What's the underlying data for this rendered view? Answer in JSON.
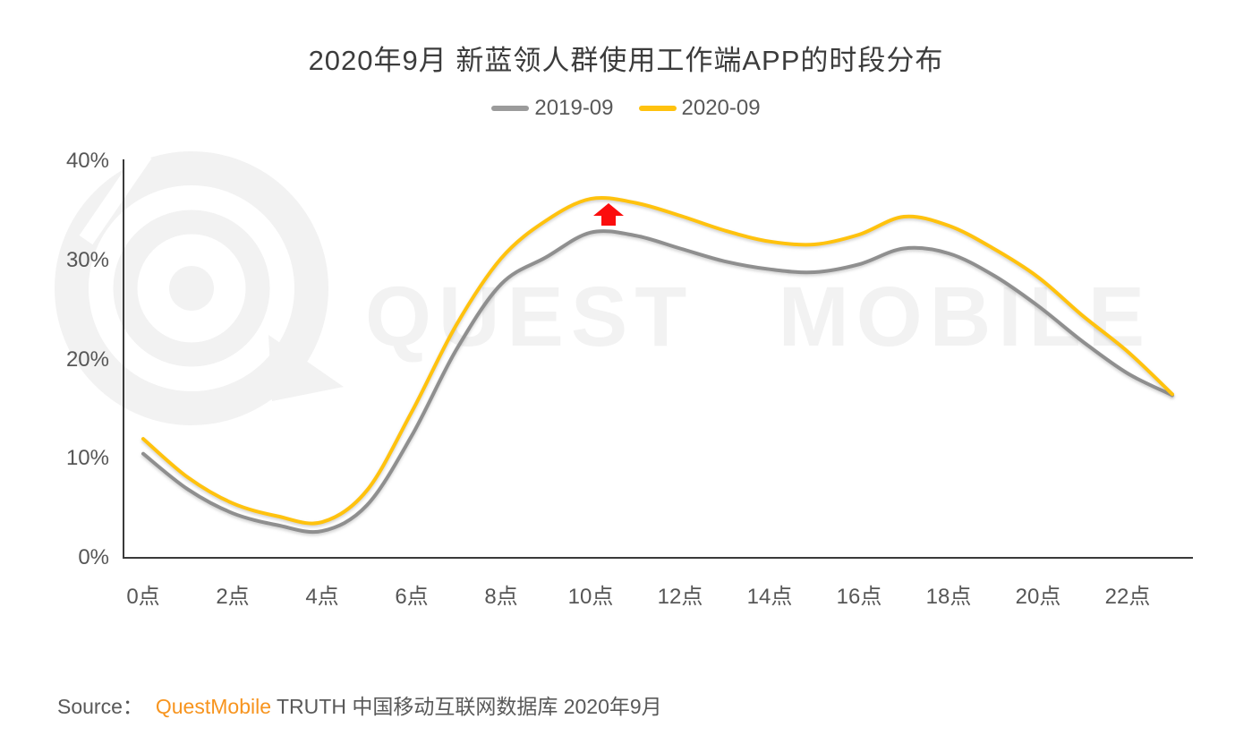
{
  "title": "2020年9月 新蓝领人群使用工作端APP的时段分布",
  "legend": [
    {
      "label": "2019-09",
      "color": "#9b9b9b"
    },
    {
      "label": "2020-09",
      "color": "#ffc20e"
    }
  ],
  "watermark": {
    "text": "QUEST MOBILE"
  },
  "source": {
    "prefix": "Source：",
    "brand": "QuestMobile",
    "brand_color": "#f7941e",
    "suffix": "TRUTH 中国移动互联网数据库 2020年9月"
  },
  "chart_data": {
    "type": "line",
    "x": [
      0,
      1,
      2,
      3,
      4,
      5,
      6,
      7,
      8,
      9,
      10,
      11,
      12,
      13,
      14,
      15,
      16,
      17,
      18,
      19,
      20,
      21,
      22,
      23
    ],
    "x_tick_labels": [
      "0点",
      "2点",
      "4点",
      "6点",
      "8点",
      "10点",
      "12点",
      "14点",
      "16点",
      "18点",
      "20点",
      "22点"
    ],
    "x_tick_hours": [
      0,
      2,
      4,
      6,
      8,
      10,
      12,
      14,
      16,
      18,
      20,
      22
    ],
    "y_tick_labels": [
      "0%",
      "10%",
      "20%",
      "30%",
      "40%"
    ],
    "y_ticks": [
      0,
      10,
      20,
      30,
      40
    ],
    "ylim": [
      0,
      40
    ],
    "grid": false,
    "legend_position": "top",
    "series": [
      {
        "name": "2019-09",
        "color": "#8f8f8f",
        "values": [
          10.5,
          6.9,
          4.5,
          3.3,
          2.7,
          5.3,
          12.3,
          21.0,
          27.6,
          30.3,
          32.8,
          32.5,
          31.2,
          29.9,
          29.1,
          28.8,
          29.6,
          31.2,
          30.7,
          28.5,
          25.4,
          21.8,
          18.6,
          16.4
        ]
      },
      {
        "name": "2020-09",
        "color": "#ffc20e",
        "values": [
          12.0,
          8.1,
          5.5,
          4.2,
          3.6,
          6.8,
          14.7,
          23.5,
          30.2,
          34.0,
          36.2,
          35.8,
          34.5,
          33.0,
          31.9,
          31.6,
          32.6,
          34.4,
          33.5,
          31.2,
          28.3,
          24.4,
          20.8,
          16.5
        ]
      }
    ],
    "annotation": {
      "type": "arrow-up",
      "hour": 10.4,
      "color": "#fb0d0d"
    }
  }
}
